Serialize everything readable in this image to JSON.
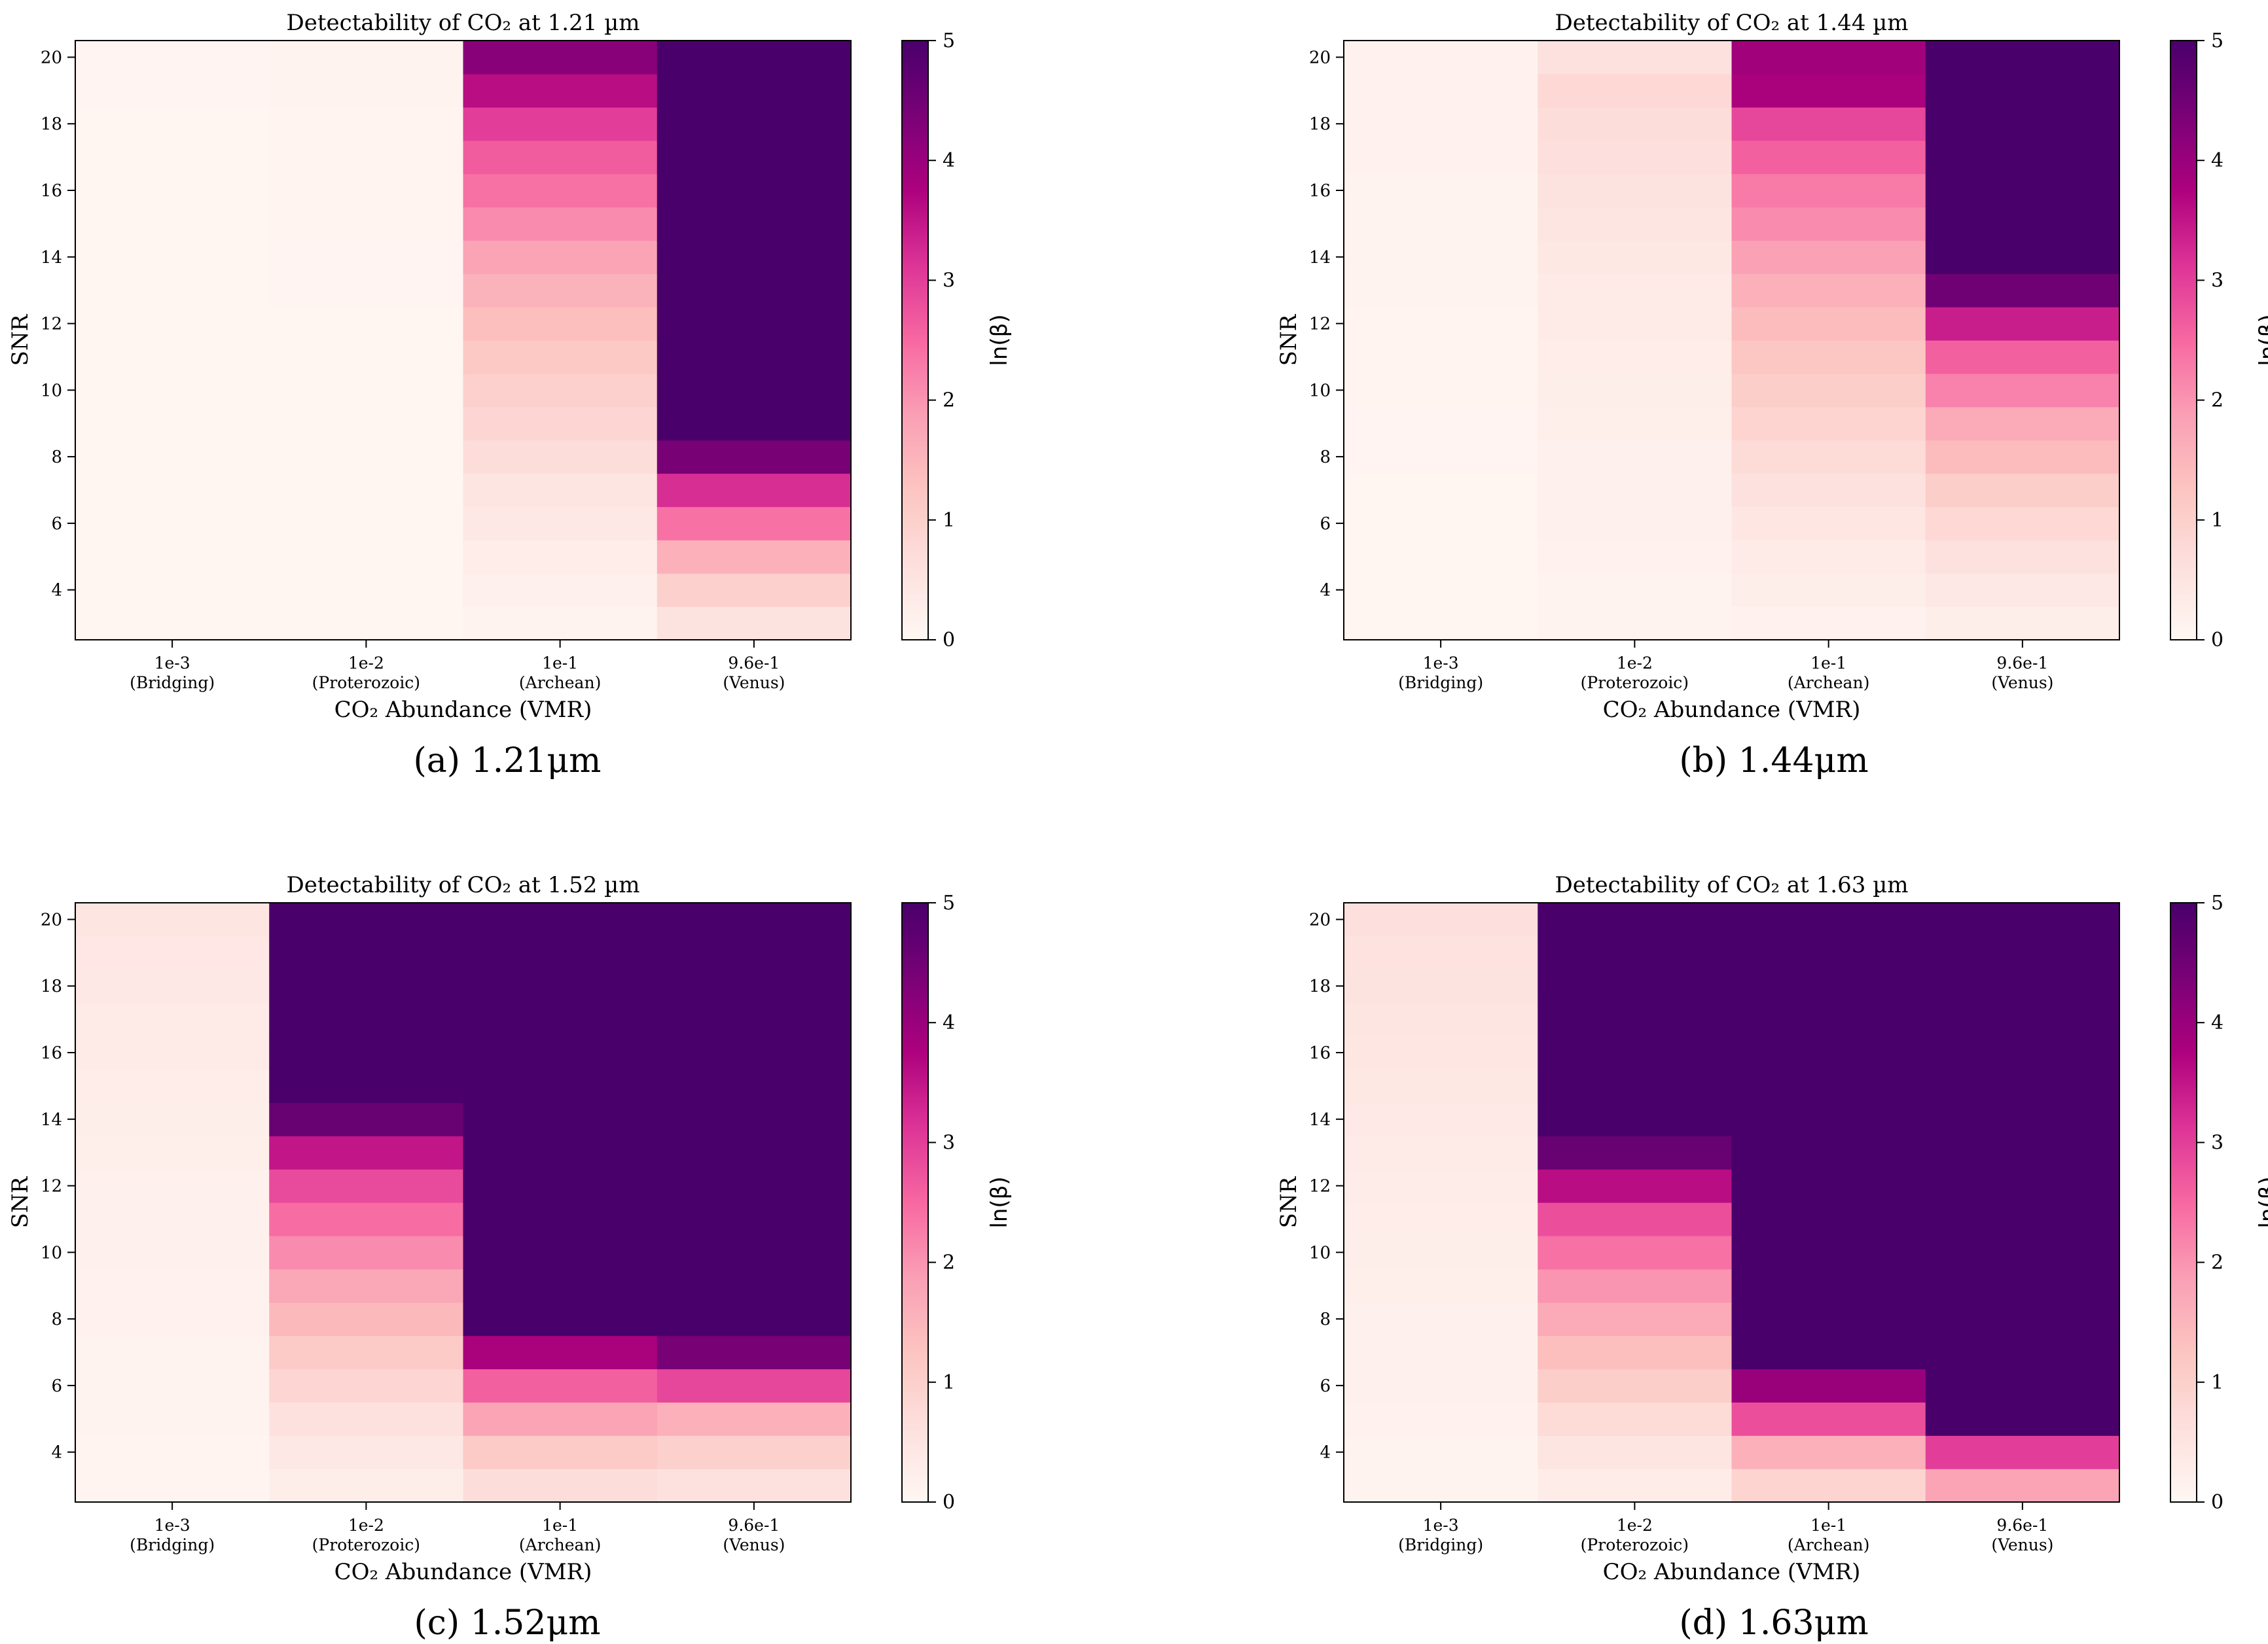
{
  "figure": {
    "captions": [
      "(a) 1.21μm",
      "(b) 1.44μm",
      "(c) 1.52μm",
      "(d) 1.63μm"
    ]
  },
  "colors": {
    "scale": [
      "#fff7f3",
      "#fde0dd",
      "#fcc5c0",
      "#fa9fb5",
      "#f768a1",
      "#dd3497",
      "#ae017e",
      "#7a0177",
      "#49006a"
    ]
  },
  "chart_data": [
    {
      "type": "heatmap",
      "title": "Detectability of CO₂ at 1.21 µm",
      "xlabel": "CO₂ Abundance (VMR)",
      "ylabel": "SNR",
      "categories": [
        "1e-3",
        "1e-2",
        "1e-1",
        "9.6e-1"
      ],
      "category_sublabels": [
        "(Bridging)",
        "(Proterozoic)",
        "(Archean)",
        "(Venus)"
      ],
      "snr": [
        3,
        4,
        5,
        6,
        7,
        8,
        9,
        10,
        11,
        12,
        13,
        14,
        15,
        16,
        17,
        18,
        19,
        20
      ],
      "yticks": [
        4,
        6,
        8,
        10,
        12,
        14,
        16,
        18,
        20
      ],
      "ylim": [
        2.5,
        20.5
      ],
      "colorbar": {
        "label": "ln(β)",
        "min": 0,
        "max": 5,
        "ticks": [
          0,
          1,
          2,
          3,
          4,
          5
        ]
      },
      "values": [
        [
          0.05,
          0.05,
          0.05,
          0.05,
          0.05,
          0.05,
          0.05,
          0.05,
          0.05,
          0.05,
          0.06,
          0.06,
          0.06,
          0.06,
          0.06,
          0.06,
          0.07,
          0.07
        ],
        [
          0.06,
          0.06,
          0.06,
          0.06,
          0.06,
          0.06,
          0.06,
          0.06,
          0.06,
          0.06,
          0.07,
          0.07,
          0.08,
          0.08,
          0.08,
          0.09,
          0.1,
          0.1
        ],
        [
          0.12,
          0.2,
          0.28,
          0.4,
          0.5,
          0.7,
          0.85,
          1.0,
          1.15,
          1.35,
          1.55,
          1.8,
          2.1,
          2.4,
          2.65,
          3.0,
          3.6,
          4.2
        ],
        [
          0.55,
          1.0,
          1.6,
          2.4,
          3.2,
          4.4,
          5,
          5,
          5,
          5,
          5,
          5,
          5,
          5,
          5,
          5,
          5,
          5
        ]
      ]
    },
    {
      "type": "heatmap",
      "title": "Detectability of CO₂ at 1.44 µm",
      "xlabel": "CO₂ Abundance (VMR)",
      "ylabel": "SNR",
      "categories": [
        "1e-3",
        "1e-2",
        "1e-1",
        "9.6e-1"
      ],
      "category_sublabels": [
        "(Bridging)",
        "(Proterozoic)",
        "(Archean)",
        "(Venus)"
      ],
      "snr": [
        3,
        4,
        5,
        6,
        7,
        8,
        9,
        10,
        11,
        12,
        13,
        14,
        15,
        16,
        17,
        18,
        19,
        20
      ],
      "yticks": [
        4,
        6,
        8,
        10,
        12,
        14,
        16,
        18,
        20
      ],
      "ylim": [
        2.5,
        20.5
      ],
      "colorbar": {
        "label": "ln(β)",
        "min": 0,
        "max": 5,
        "ticks": [
          0,
          1,
          2,
          3,
          4,
          5
        ]
      },
      "values": [
        [
          0.05,
          0.05,
          0.05,
          0.06,
          0.06,
          0.07,
          0.07,
          0.08,
          0.08,
          0.09,
          0.1,
          0.1,
          0.12,
          0.12,
          0.13,
          0.13,
          0.14,
          0.14
        ],
        [
          0.1,
          0.12,
          0.14,
          0.16,
          0.18,
          0.2,
          0.22,
          0.25,
          0.28,
          0.32,
          0.36,
          0.42,
          0.48,
          0.55,
          0.62,
          0.7,
          0.8,
          0.6
        ],
        [
          0.15,
          0.25,
          0.35,
          0.45,
          0.6,
          0.75,
          0.9,
          1.05,
          1.2,
          1.4,
          1.6,
          1.85,
          2.1,
          2.3,
          2.6,
          2.9,
          3.8,
          3.9
        ],
        [
          0.25,
          0.4,
          0.6,
          0.8,
          1.05,
          1.4,
          1.7,
          2.2,
          2.6,
          3.4,
          4.5,
          5,
          5,
          5,
          5,
          5,
          5,
          5
        ]
      ]
    },
    {
      "type": "heatmap",
      "title": "Detectability of CO₂ at 1.52 µm",
      "xlabel": "CO₂ Abundance (VMR)",
      "ylabel": "SNR",
      "categories": [
        "1e-3",
        "1e-2",
        "1e-1",
        "9.6e-1"
      ],
      "category_sublabels": [
        "(Bridging)",
        "(Proterozoic)",
        "(Archean)",
        "(Venus)"
      ],
      "snr": [
        3,
        4,
        5,
        6,
        7,
        8,
        9,
        10,
        11,
        12,
        13,
        14,
        15,
        16,
        17,
        18,
        19,
        20
      ],
      "yticks": [
        4,
        6,
        8,
        10,
        12,
        14,
        16,
        18,
        20
      ],
      "ylim": [
        2.5,
        20.5
      ],
      "colorbar": {
        "label": "ln(β)",
        "min": 0,
        "max": 5,
        "ticks": [
          0,
          1,
          2,
          3,
          4,
          5
        ]
      },
      "values": [
        [
          0.08,
          0.09,
          0.1,
          0.11,
          0.12,
          0.14,
          0.15,
          0.17,
          0.18,
          0.2,
          0.22,
          0.25,
          0.28,
          0.32,
          0.35,
          0.4,
          0.44,
          0.48
        ],
        [
          0.25,
          0.4,
          0.6,
          0.85,
          1.1,
          1.45,
          1.75,
          2.1,
          2.45,
          2.85,
          3.5,
          4.6,
          5,
          5,
          5,
          5,
          5,
          5
        ],
        [
          0.7,
          1.1,
          1.8,
          2.6,
          3.8,
          5,
          5,
          5,
          5,
          5,
          5,
          5,
          5,
          5,
          5,
          5,
          5,
          5
        ],
        [
          0.6,
          1.0,
          1.6,
          2.9,
          4.4,
          5,
          5,
          5,
          5,
          5,
          5,
          5,
          5,
          5,
          5,
          5,
          5,
          5
        ]
      ]
    },
    {
      "type": "heatmap",
      "title": "Detectability of CO₂ at 1.63 µm",
      "xlabel": "CO₂ Abundance (VMR)",
      "ylabel": "SNR",
      "categories": [
        "1e-3",
        "1e-2",
        "1e-1",
        "9.6e-1"
      ],
      "category_sublabels": [
        "(Bridging)",
        "(Proterozoic)",
        "(Archean)",
        "(Venus)"
      ],
      "snr": [
        3,
        4,
        5,
        6,
        7,
        8,
        9,
        10,
        11,
        12,
        13,
        14,
        15,
        16,
        17,
        18,
        19,
        20
      ],
      "yticks": [
        4,
        6,
        8,
        10,
        12,
        14,
        16,
        18,
        20
      ],
      "ylim": [
        2.5,
        20.5
      ],
      "colorbar": {
        "label": "ln(β)",
        "min": 0,
        "max": 5,
        "ticks": [
          0,
          1,
          2,
          3,
          4,
          5
        ]
      },
      "values": [
        [
          0.1,
          0.12,
          0.14,
          0.16,
          0.18,
          0.2,
          0.22,
          0.25,
          0.28,
          0.3,
          0.34,
          0.38,
          0.42,
          0.46,
          0.5,
          0.55,
          0.58,
          0.62
        ],
        [
          0.3,
          0.5,
          0.75,
          1.05,
          1.35,
          1.7,
          2.0,
          2.4,
          2.8,
          3.6,
          4.6,
          5,
          5,
          5,
          5,
          5,
          5,
          5
        ],
        [
          0.9,
          1.6,
          2.8,
          4.0,
          5,
          5,
          5,
          5,
          5,
          5,
          5,
          5,
          5,
          5,
          5,
          5,
          5,
          5
        ],
        [
          1.8,
          3.0,
          5,
          5,
          5,
          5,
          5,
          5,
          5,
          5,
          5,
          5,
          5,
          5,
          5,
          5,
          5,
          5
        ]
      ]
    }
  ]
}
